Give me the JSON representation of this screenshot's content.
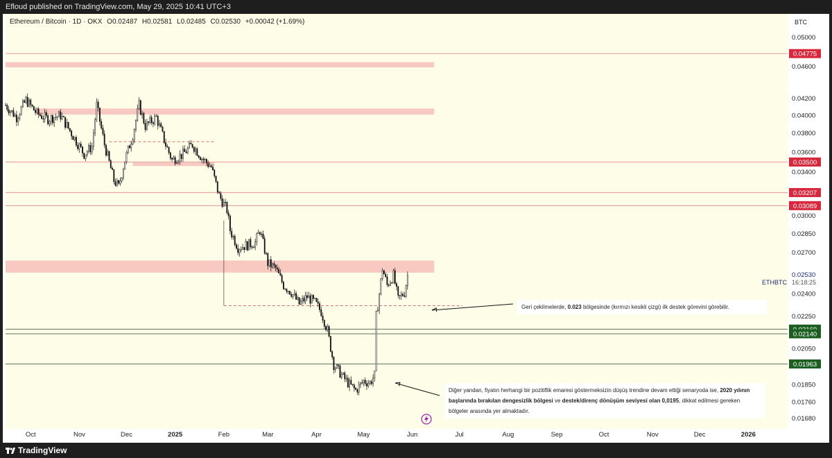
{
  "header": {
    "published": "Efloud published on TradingView.com, May 29, 2025 10:41 UTC+3"
  },
  "legend": {
    "pair": "Ethereum / Bitcoin · 1D · OKX",
    "open": "O0.02487",
    "high": "H0.02581",
    "low": "L0.02485",
    "close": "C0.02530",
    "change": "+0.00042 (+1.69%)"
  },
  "currency": "BTC",
  "footer": {
    "brand": "TradingView"
  },
  "colors": {
    "plot_bg": "#fefde8",
    "zone": "#f7c9c1",
    "red_line": "#e8a7a3",
    "red_label": "#d7283e",
    "green_label": "#1b5e20",
    "candle": "#111111"
  },
  "annotations": {
    "first": {
      "text1": "Geri çekilmelerde, ",
      "bold1": "0.023",
      "text2": " bölgesinde (kırmızı kesikli çizgi) ilk destek görevini görebilir."
    },
    "second": {
      "t1": "Diğer yandan, fiyatın herhangi bir pozitiflik emaresi göstermeksizin düşüş trendine devam ettiği senaryoda ise, ",
      "b1": "2020 yılının başlarında bırakılan dengesizlik bölgesi",
      "t2": " ve ",
      "b2": "destek/direnç dönüşüm seviyesi olan 0,0195",
      "t3": ", dikkat edilmesi gereken bölgeler arasında yer almaktadır."
    }
  },
  "chart_data": {
    "type": "candlestick",
    "symbol": "ETHBTC",
    "last_price": "0.02530",
    "countdown": "16:18:25",
    "y_scale": "log",
    "ylim": [
      0.0163,
      0.0535
    ],
    "y_ticks": [
      "0.05000",
      "0.04600",
      "0.04200",
      "0.04000",
      "0.03800",
      "0.03600",
      "0.03400",
      "0.03000",
      "0.02850",
      "0.02700",
      "0.02400",
      "0.02250",
      "0.02050",
      "0.01850",
      "0.01760",
      "0.01680"
    ],
    "x_range": [
      "2024-09-15",
      "2026-01-26"
    ],
    "x_ticks": [
      {
        "label": "Oct",
        "date": "2024-10-01"
      },
      {
        "label": "Nov",
        "date": "2024-11-01"
      },
      {
        "label": "Dec",
        "date": "2024-12-01"
      },
      {
        "label": "2025",
        "date": "2025-01-01",
        "bold": true
      },
      {
        "label": "Feb",
        "date": "2025-02-01"
      },
      {
        "label": "Mar",
        "date": "2025-03-01"
      },
      {
        "label": "Apr",
        "date": "2025-04-01"
      },
      {
        "label": "May",
        "date": "2025-05-01"
      },
      {
        "label": "Jun",
        "date": "2025-06-01"
      },
      {
        "label": "Jul",
        "date": "2025-07-01"
      },
      {
        "label": "Aug",
        "date": "2025-08-01"
      },
      {
        "label": "Sep",
        "date": "2025-09-01"
      },
      {
        "label": "Oct",
        "date": "2025-10-01"
      },
      {
        "label": "Nov",
        "date": "2025-11-01"
      },
      {
        "label": "Dec",
        "date": "2025-12-01"
      },
      {
        "label": "2026",
        "date": "2026-01-01",
        "bold": true
      }
    ],
    "price_path": [
      [
        "2024-09-15",
        0.0412
      ],
      [
        "2024-09-22",
        0.0398
      ],
      [
        "2024-09-28",
        0.0418
      ],
      [
        "2024-10-05",
        0.0402
      ],
      [
        "2024-10-12",
        0.0396
      ],
      [
        "2024-10-20",
        0.04
      ],
      [
        "2024-10-27",
        0.038
      ],
      [
        "2024-11-04",
        0.0358
      ],
      [
        "2024-11-09",
        0.0366
      ],
      [
        "2024-11-12",
        0.0412
      ],
      [
        "2024-11-17",
        0.0368
      ],
      [
        "2024-11-23",
        0.0332
      ],
      [
        "2024-11-26",
        0.0326
      ],
      [
        "2024-11-30",
        0.0352
      ],
      [
        "2024-12-05",
        0.0378
      ],
      [
        "2024-12-09",
        0.0412
      ],
      [
        "2024-12-13",
        0.0388
      ],
      [
        "2024-12-20",
        0.0398
      ],
      [
        "2024-12-26",
        0.0368
      ],
      [
        "2024-12-30",
        0.0352
      ],
      [
        "2025-01-06",
        0.0358
      ],
      [
        "2025-01-12",
        0.0368
      ],
      [
        "2025-01-18",
        0.0354
      ],
      [
        "2025-01-24",
        0.0345
      ],
      [
        "2025-01-29",
        0.0318
      ],
      [
        "2025-02-03",
        0.0305
      ],
      [
        "2025-02-05",
        0.0288
      ],
      [
        "2025-02-10",
        0.0274
      ],
      [
        "2025-02-16",
        0.0276
      ],
      [
        "2025-02-21",
        0.0278
      ],
      [
        "2025-02-24",
        0.0288
      ],
      [
        "2025-03-01",
        0.0262
      ],
      [
        "2025-03-06",
        0.0258
      ],
      [
        "2025-03-11",
        0.0246
      ],
      [
        "2025-03-16",
        0.0241
      ],
      [
        "2025-03-21",
        0.0233
      ],
      [
        "2025-03-26",
        0.0238
      ],
      [
        "2025-03-31",
        0.0234
      ],
      [
        "2025-04-04",
        0.0228
      ],
      [
        "2025-04-08",
        0.0216
      ],
      [
        "2025-04-12",
        0.0196
      ],
      [
        "2025-04-18",
        0.0189
      ],
      [
        "2025-04-22",
        0.0185
      ],
      [
        "2025-04-26",
        0.0182
      ],
      [
        "2025-05-01",
        0.0187
      ],
      [
        "2025-05-05",
        0.0186
      ],
      [
        "2025-05-08",
        0.019
      ],
      [
        "2025-05-09",
        0.0225
      ],
      [
        "2025-05-11",
        0.024
      ],
      [
        "2025-05-13",
        0.0258
      ],
      [
        "2025-05-16",
        0.0246
      ],
      [
        "2025-05-20",
        0.0253
      ],
      [
        "2025-05-23",
        0.0236
      ],
      [
        "2025-05-27",
        0.0241
      ],
      [
        "2025-05-29",
        0.0253
      ]
    ],
    "zones": [
      {
        "from": "2024-09-15",
        "to": "2025-06-15",
        "low": 0.0459,
        "high": 0.0466
      },
      {
        "from": "2024-10-05",
        "to": "2025-06-15",
        "low": 0.0401,
        "high": 0.0408
      },
      {
        "from": "2024-12-05",
        "to": "2025-01-26",
        "low": 0.0346,
        "high": 0.03495
      },
      {
        "from": "2024-09-15",
        "to": "2025-06-15",
        "low": 0.0255,
        "high": 0.0264
      }
    ],
    "levels": [
      {
        "price": 0.04775,
        "label": "0.04775",
        "style": "red"
      },
      {
        "price": 0.035,
        "label": "0.03500",
        "style": "red"
      },
      {
        "price": 0.03207,
        "label": "0.03207",
        "style": "red"
      },
      {
        "price": 0.03089,
        "label": "0.03089",
        "style": "red"
      },
      {
        "price": 0.02169,
        "label": "0.02169",
        "style": "green"
      },
      {
        "price": 0.0214,
        "label": "0.02140",
        "style": "green"
      },
      {
        "price": 0.01963,
        "label": "0.01963",
        "style": "green"
      }
    ],
    "dashed_lines": [
      {
        "from": "2024-11-20",
        "to": "2025-01-27",
        "price": 0.0371
      },
      {
        "from": "2025-02-01",
        "to": "2025-07-03",
        "price": 0.0232
      }
    ]
  }
}
